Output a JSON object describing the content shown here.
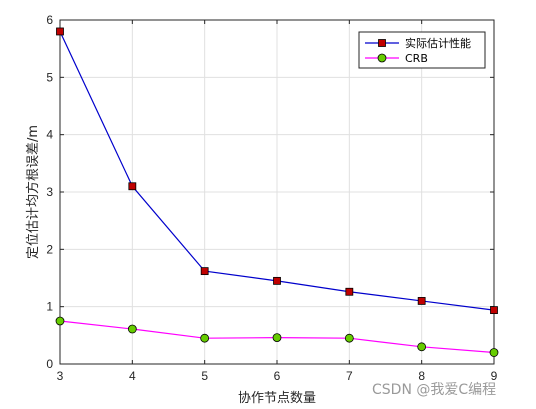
{
  "colors": {
    "series1_line": "#0000cc",
    "series1_marker": "#c00000",
    "series2_line": "#ff00ff",
    "series2_marker": "#66cc00",
    "grid": "#e0e0e0",
    "axis": "#262626"
  },
  "watermark": "CSDN @我爱C编程",
  "chart_data": {
    "type": "line",
    "x": [
      3,
      4,
      5,
      6,
      7,
      8,
      9
    ],
    "series": [
      {
        "name": "实际估计性能",
        "values": [
          5.8,
          3.1,
          1.62,
          1.45,
          1.26,
          1.1,
          0.94
        ],
        "marker": "square"
      },
      {
        "name": "CRB",
        "values": [
          0.75,
          0.61,
          0.45,
          0.46,
          0.45,
          0.3,
          0.2
        ],
        "marker": "circle"
      }
    ],
    "xlabel": "协作节点数量",
    "ylabel": "定位估计均方根误差/m",
    "xlim": [
      3,
      9
    ],
    "ylim": [
      0,
      6
    ],
    "xticks": [
      3,
      4,
      5,
      6,
      7,
      8,
      9
    ],
    "yticks": [
      0,
      1,
      2,
      3,
      4,
      5,
      6
    ],
    "grid": true,
    "legend_position": "top-right"
  }
}
